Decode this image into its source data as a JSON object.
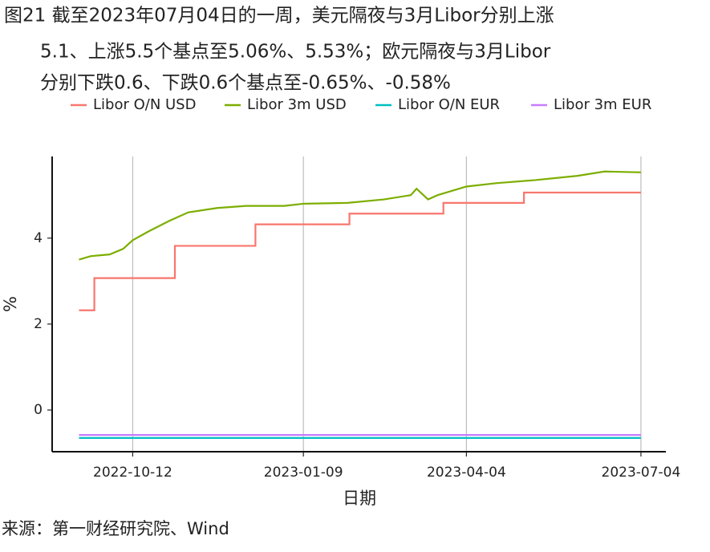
{
  "chart_data": {
    "type": "line",
    "title": [
      "图21  截至2023年07月04日的一周，美元隔夜与3月Libor分别上涨",
      "5.1、上涨5.5个基点至5.06%、5.53%；欧元隔夜与3月Libor",
      "分别下跌0.6、下跌0.6个基点至-0.65%、-0.58%"
    ],
    "xlabel": "日期",
    "ylabel": "%",
    "source": "来源：第一财经研究院、Wind",
    "xlim": [
      "2022-08-31",
      "2023-07-17"
    ],
    "xticks": [
      "2022-10-12",
      "2023-01-09",
      "2023-04-04",
      "2023-07-04"
    ],
    "ylim": [
      -0.97,
      5.9
    ],
    "yticks": [
      0,
      2,
      4
    ],
    "grid": "x",
    "legend": "top",
    "series": [
      {
        "name": "Libor O/N USD",
        "color": "#f8766d",
        "x": [
          "2022-09-14",
          "2022-09-22",
          "2022-09-22",
          "2022-11-03",
          "2022-11-03",
          "2022-12-15",
          "2022-12-15",
          "2023-02-02",
          "2023-02-02",
          "2023-03-23",
          "2023-03-23",
          "2023-05-04",
          "2023-05-04",
          "2023-07-04"
        ],
        "values": [
          2.32,
          2.32,
          3.07,
          3.07,
          3.82,
          3.82,
          4.32,
          4.32,
          4.57,
          4.57,
          4.82,
          4.82,
          5.06,
          5.06
        ]
      },
      {
        "name": "Libor 3m USD",
        "color": "#7cae00",
        "x": [
          "2022-09-14",
          "2022-09-20",
          "2022-09-30",
          "2022-10-07",
          "2022-10-12",
          "2022-10-20",
          "2022-10-31",
          "2022-11-10",
          "2022-11-25",
          "2022-12-10",
          "2022-12-30",
          "2023-01-09",
          "2023-02-01",
          "2023-02-20",
          "2023-03-06",
          "2023-03-09",
          "2023-03-15",
          "2023-03-20",
          "2023-04-04",
          "2023-04-20",
          "2023-05-10",
          "2023-06-01",
          "2023-06-15",
          "2023-07-04"
        ],
        "values": [
          3.5,
          3.58,
          3.62,
          3.75,
          3.95,
          4.15,
          4.4,
          4.6,
          4.7,
          4.75,
          4.75,
          4.8,
          4.82,
          4.9,
          5.0,
          5.15,
          4.9,
          5.0,
          5.2,
          5.28,
          5.35,
          5.45,
          5.55,
          5.53
        ]
      },
      {
        "name": "Libor O/N EUR",
        "color": "#00bfc4",
        "x": [
          "2022-09-14",
          "2023-07-04"
        ],
        "values": [
          -0.65,
          -0.65
        ]
      },
      {
        "name": "Libor 3m EUR",
        "color": "#c77cff",
        "x": [
          "2022-09-14",
          "2023-07-04"
        ],
        "values": [
          -0.58,
          -0.58
        ]
      }
    ]
  }
}
